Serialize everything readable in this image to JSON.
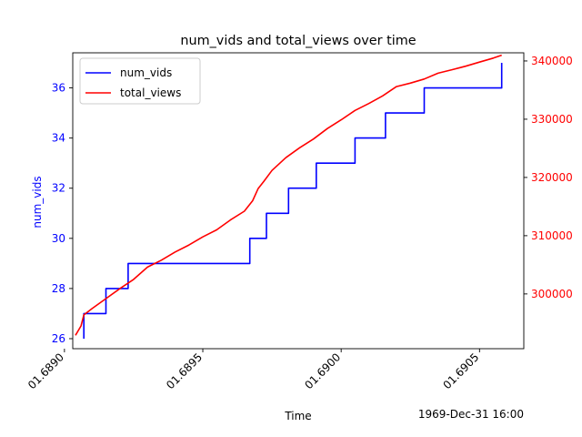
{
  "chart_data": {
    "type": "line",
    "title": "num_vids and total_views over time",
    "xlabel": "Time",
    "x_offset_label": "1969-Dec-31 16:00",
    "xlim": [
      0.68903,
      0.69066
    ],
    "x_ticks": [
      0.689,
      0.6895,
      0.69,
      0.6905
    ],
    "x_tick_labels": [
      "01.6890",
      "01.6895",
      "01.6900",
      "01.6905"
    ],
    "legend_position": "upper left",
    "grid": false,
    "left_axis": {
      "label": "num_vids",
      "color": "#0000ff",
      "ylim": [
        25.6,
        37.4
      ],
      "ticks": [
        26,
        28,
        30,
        32,
        34,
        36
      ],
      "tick_labels": [
        "26",
        "28",
        "30",
        "32",
        "34",
        "36"
      ]
    },
    "right_axis": {
      "color": "#ff0000",
      "ylim": [
        290600,
        341400
      ],
      "ticks": [
        300000,
        310000,
        320000,
        330000,
        340000
      ],
      "tick_labels": [
        "300000",
        "310000",
        "320000",
        "330000",
        "340000"
      ]
    },
    "series": [
      {
        "name": "num_vids",
        "axis": "left",
        "color": "#0000ff",
        "style": "step",
        "x": [
          0.68907,
          0.68907,
          0.68915,
          0.68923,
          0.68967,
          0.68973,
          0.68981,
          0.68991,
          0.69005,
          0.69016,
          0.6903,
          0.69058,
          0.69058
        ],
        "y": [
          26,
          27,
          28,
          29,
          30,
          31,
          32,
          33,
          34,
          35,
          36,
          36,
          37
        ]
      },
      {
        "name": "total_views",
        "axis": "right",
        "color": "#ff0000",
        "style": "line",
        "x": [
          0.68904,
          0.68906,
          0.68907,
          0.6891,
          0.68915,
          0.6892,
          0.68925,
          0.6893,
          0.68935,
          0.6894,
          0.68945,
          0.6895,
          0.68955,
          0.6896,
          0.68965,
          0.68968,
          0.6897,
          0.68972,
          0.68975,
          0.6898,
          0.68985,
          0.6899,
          0.68995,
          0.69,
          0.69005,
          0.6901,
          0.69015,
          0.6902,
          0.69025,
          0.6903,
          0.69035,
          0.6904,
          0.69045,
          0.6905,
          0.69055,
          0.69058
        ],
        "y": [
          292900,
          294500,
          296400,
          297500,
          299200,
          300900,
          302500,
          304600,
          305800,
          307200,
          308400,
          309800,
          311000,
          312700,
          314200,
          316000,
          318100,
          319300,
          321200,
          323400,
          325100,
          326600,
          328400,
          329900,
          331500,
          332700,
          334000,
          335600,
          336200,
          336900,
          337900,
          338500,
          339100,
          339800,
          340500,
          341000
        ]
      }
    ]
  }
}
